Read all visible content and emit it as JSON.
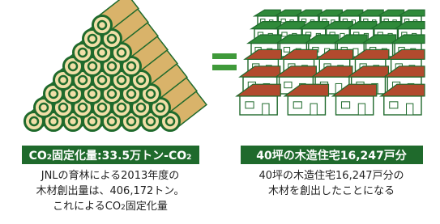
{
  "left": {
    "badge": [
      "CO",
      "2",
      "固定化量:33.5万トン-CO",
      "2"
    ],
    "description": [
      [
        "JNLの育林による2013年度の"
      ],
      [
        "木材創出量は、406,172トン。"
      ],
      [
        "これによるCO",
        "2",
        "固定化量"
      ]
    ]
  },
  "right": {
    "badge": [
      "40坪の木造住宅16,247戸分"
    ],
    "description": [
      [
        "40坪の木造住宅16,247戸分の"
      ],
      [
        "木材を創出したことになる"
      ]
    ]
  }
}
